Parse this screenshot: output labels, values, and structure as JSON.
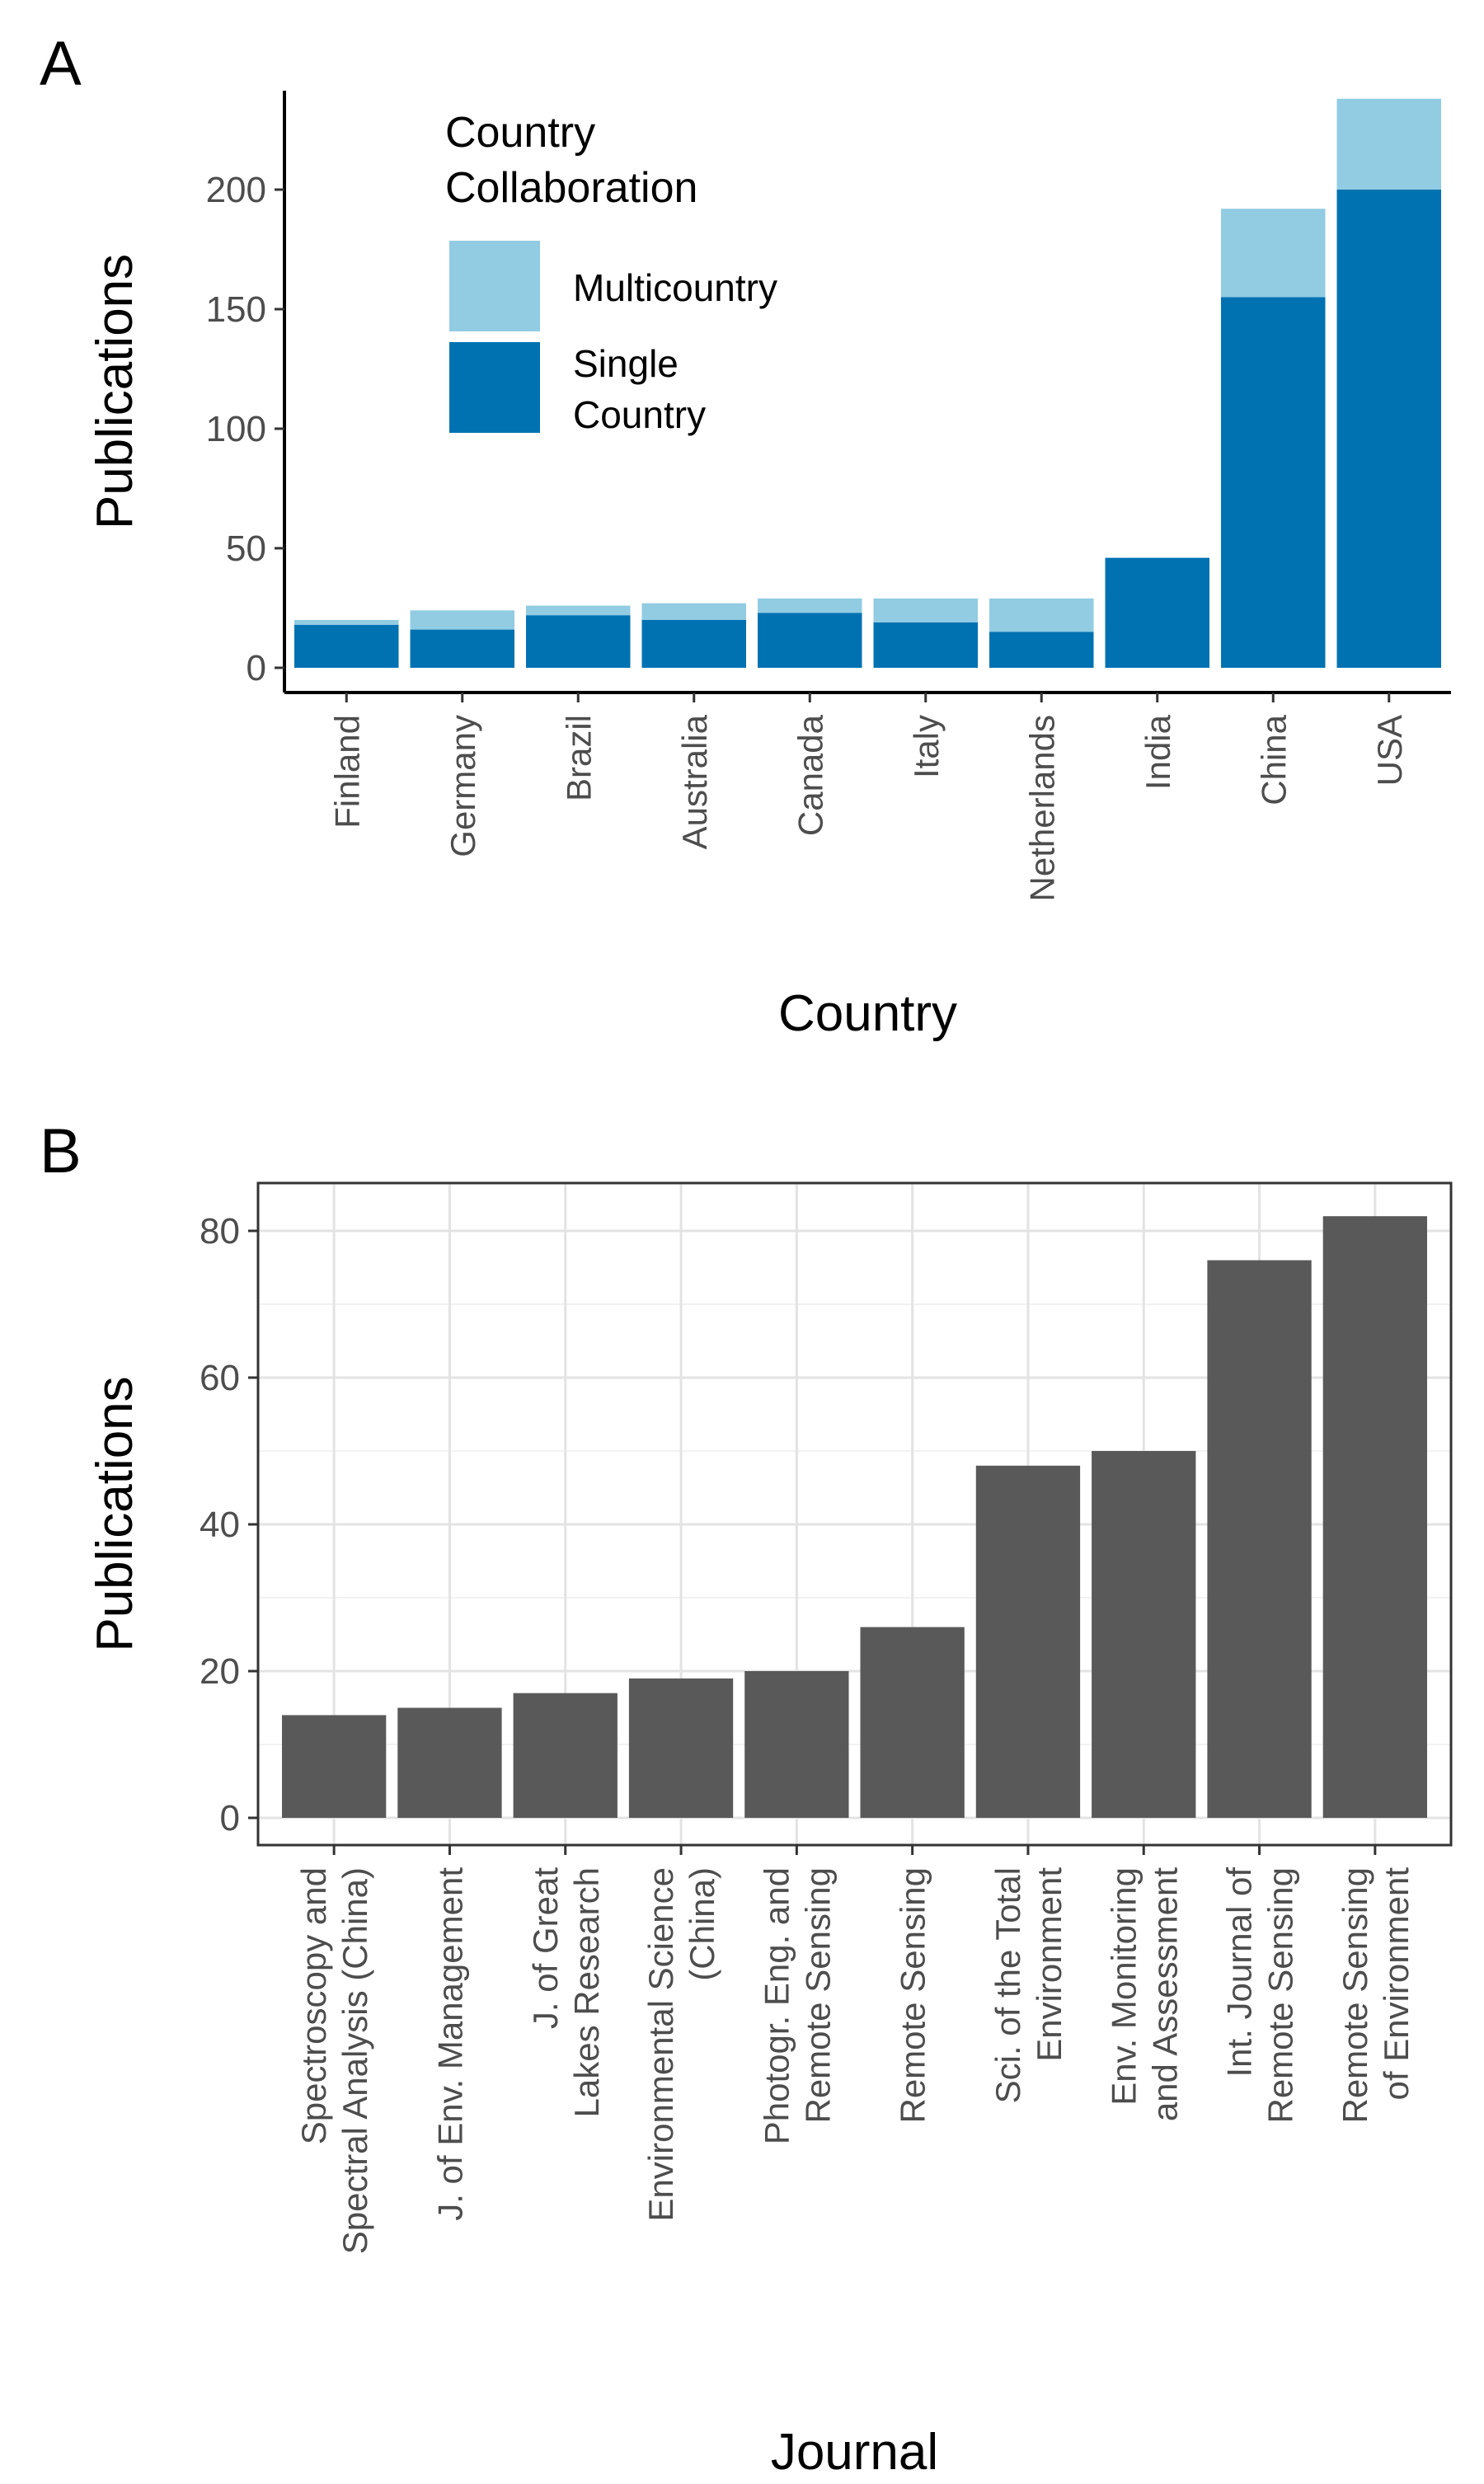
{
  "chart_data": [
    {
      "panel_label": "A",
      "type": "bar",
      "stacked": true,
      "title": "",
      "xlabel": "Country",
      "ylabel": "Publications",
      "ylim": [
        0,
        240
      ],
      "yticks": [
        0,
        50,
        100,
        150,
        200
      ],
      "grid": false,
      "categories": [
        "Finland",
        "Germany",
        "Brazil",
        "Australia",
        "Canada",
        "Italy",
        "Netherlands",
        "India",
        "China",
        "USA"
      ],
      "series": [
        {
          "name": "Single Country",
          "name_lines": [
            "Single",
            "Country"
          ],
          "color": "#0072B2",
          "values": [
            18,
            16,
            22,
            20,
            23,
            19,
            15,
            46,
            155,
            200
          ]
        },
        {
          "name": "Multicountry",
          "name_lines": [
            "Multicountry"
          ],
          "color": "#91CCE3",
          "values": [
            2,
            8,
            4,
            7,
            6,
            10,
            14,
            0,
            37,
            38
          ]
        }
      ],
      "legend": {
        "title_lines": [
          "Country",
          "Collaboration"
        ],
        "position": "top-left"
      }
    },
    {
      "panel_label": "B",
      "type": "bar",
      "stacked": false,
      "title": "",
      "xlabel": "Journal",
      "ylabel": "Publications",
      "ylim": [
        0,
        85
      ],
      "yticks": [
        0,
        20,
        40,
        60,
        80
      ],
      "grid": true,
      "bar_color": "#595959",
      "categories": [
        [
          "Spectroscopy and",
          "Spectral Analysis (China)"
        ],
        [
          "J. of Env. Management"
        ],
        [
          "J. of Great",
          "Lakes Research"
        ],
        [
          "Environmental Science",
          "(China)"
        ],
        [
          "Photogr. Eng. and",
          "Remote Sensing"
        ],
        [
          "Remote Sensing"
        ],
        [
          "Sci. of the Total",
          "Environment"
        ],
        [
          "Env. Monitoring",
          "and Assessment"
        ],
        [
          "Int. Journal of",
          "Remote Sensing"
        ],
        [
          "Remote Sensing",
          "of Environment"
        ]
      ],
      "values": [
        14,
        15,
        17,
        19,
        20,
        26,
        48,
        50,
        76,
        82
      ]
    }
  ]
}
